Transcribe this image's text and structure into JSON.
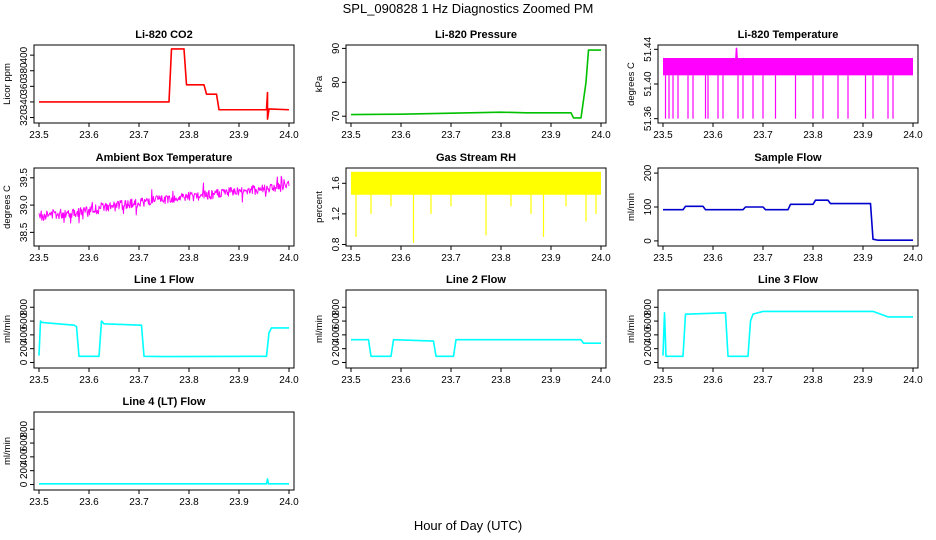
{
  "figure": {
    "title": "SPL_090828  1 Hz Diagnostics Zoomed PM",
    "xlabel": "Hour of Day (UTC)"
  },
  "chart_data": [
    {
      "id": "co2",
      "type": "line",
      "title": "Li-820 CO2",
      "ylabel": "Licor ppm",
      "color": "#ff0000",
      "xlim": [
        23.49,
        24.01
      ],
      "ylim": [
        313,
        413
      ],
      "yticks": [
        320,
        340,
        360,
        380,
        400
      ],
      "xticks": [
        23.5,
        23.6,
        23.7,
        23.8,
        23.9,
        24.0
      ],
      "x": [
        23.5,
        23.76,
        23.765,
        23.79,
        23.795,
        23.83,
        23.835,
        23.855,
        23.86,
        23.955,
        23.957,
        23.957,
        23.96,
        24.0
      ],
      "y": [
        340,
        340,
        408,
        408,
        362,
        362,
        350,
        350,
        330,
        330,
        352,
        318,
        331,
        330
      ]
    },
    {
      "id": "pressure",
      "type": "line",
      "title": "Li-820 Pressure",
      "ylabel": "kPa",
      "color": "#00c000",
      "xlim": [
        23.49,
        24.01
      ],
      "ylim": [
        68,
        91
      ],
      "yticks": [
        70,
        80,
        90
      ],
      "xticks": [
        23.5,
        23.6,
        23.7,
        23.8,
        23.9,
        24.0
      ],
      "x": [
        23.5,
        23.6,
        23.7,
        23.8,
        23.85,
        23.9,
        23.94,
        23.945,
        23.96,
        23.97,
        23.975,
        24.0
      ],
      "y": [
        70.5,
        70.6,
        70.9,
        71.2,
        71.0,
        71.0,
        71.0,
        69.5,
        69.5,
        80,
        89.5,
        89.5
      ]
    },
    {
      "id": "temperature",
      "type": "line",
      "title": "Li-820 Temperature",
      "ylabel": "degrees C",
      "color": "#ff00ff",
      "xlim": [
        23.49,
        24.01
      ],
      "ylim": [
        51.355,
        51.445
      ],
      "yticks": [
        51.36,
        51.4,
        51.44
      ],
      "ytick_labels": [
        "51.36",
        "51.40",
        "51.44"
      ],
      "xticks": [
        23.5,
        23.6,
        23.7,
        23.8,
        23.9,
        24.0
      ],
      "band": [
        51.41,
        51.43
      ],
      "x": [
        23.5,
        23.645,
        23.647,
        23.649,
        24.0
      ],
      "y": [
        51.42,
        51.42,
        51.441,
        51.42,
        51.42
      ],
      "dips": [
        23.505,
        23.512,
        23.52,
        23.53,
        23.55,
        23.56,
        23.585,
        23.59,
        23.61,
        23.62,
        23.65,
        23.66,
        23.68,
        23.7,
        23.725,
        23.765,
        23.8,
        23.82,
        23.85,
        23.87,
        23.905,
        23.92,
        23.95,
        23.96
      ],
      "dip_value": 51.36
    },
    {
      "id": "ambient",
      "type": "line",
      "title": "Ambient Box Temperature",
      "ylabel": "degrees C",
      "color": "#ff00ff",
      "xlim": [
        23.49,
        24.01
      ],
      "ylim": [
        38.25,
        39.68
      ],
      "yticks": [
        38.5,
        39.0,
        39.5
      ],
      "ytick_labels": [
        "38.5",
        "39.0",
        "39.5"
      ],
      "xticks": [
        23.5,
        23.6,
        23.7,
        23.8,
        23.9,
        24.0
      ],
      "x": [
        23.5,
        23.6,
        23.7,
        23.8,
        23.9,
        24.0
      ],
      "y": [
        38.8,
        38.9,
        39.05,
        39.15,
        39.25,
        39.35
      ],
      "noise": 0.09
    },
    {
      "id": "rh",
      "type": "line",
      "title": "Gas Stream RH",
      "ylabel": "percent",
      "color": "#ffff00",
      "xlim": [
        23.49,
        24.01
      ],
      "ylim": [
        0.78,
        1.8
      ],
      "yticks": [
        0.8,
        1.2,
        1.6
      ],
      "ytick_labels": [
        "0.8",
        "1.2",
        "1.6"
      ],
      "xticks": [
        23.5,
        23.6,
        23.7,
        23.8,
        23.9,
        24.0
      ],
      "band": [
        1.45,
        1.75
      ],
      "x": [
        23.5,
        24.0
      ],
      "y": [
        1.6,
        1.6
      ],
      "dips": [
        23.51,
        23.54,
        23.58,
        23.625,
        23.66,
        23.7,
        23.77,
        23.82,
        23.86,
        23.885,
        23.93,
        23.97,
        23.99
      ],
      "dip_values": [
        0.9,
        1.2,
        1.3,
        0.82,
        1.2,
        1.3,
        0.92,
        1.3,
        1.2,
        0.9,
        1.3,
        1.1,
        1.2
      ]
    },
    {
      "id": "sample",
      "type": "line",
      "title": "Sample Flow",
      "ylabel": "ml/min",
      "color": "#0000cc",
      "xlim": [
        23.49,
        24.01
      ],
      "ylim": [
        -15,
        215
      ],
      "yticks": [
        0,
        100,
        200
      ],
      "xticks": [
        23.5,
        23.6,
        23.7,
        23.8,
        23.9,
        24.0
      ],
      "x": [
        23.5,
        23.54,
        23.545,
        23.58,
        23.585,
        23.66,
        23.665,
        23.7,
        23.705,
        23.75,
        23.755,
        23.8,
        23.805,
        23.83,
        23.835,
        23.915,
        23.92,
        23.93,
        24.0
      ],
      "y": [
        92,
        92,
        102,
        102,
        92,
        92,
        100,
        100,
        92,
        92,
        108,
        108,
        120,
        120,
        110,
        110,
        5,
        2,
        2
      ]
    },
    {
      "id": "line1",
      "type": "line",
      "title": "Line 1 Flow",
      "ylabel": "ml/min",
      "color": "#00ffff",
      "xlim": [
        23.49,
        24.01
      ],
      "ylim": [
        -80,
        1050
      ],
      "yticks": [
        0,
        200,
        400,
        600,
        800
      ],
      "xticks": [
        23.5,
        23.6,
        23.7,
        23.8,
        23.9,
        24.0
      ],
      "x": [
        23.5,
        23.503,
        23.506,
        23.57,
        23.575,
        23.58,
        23.62,
        23.625,
        23.63,
        23.705,
        23.71,
        23.75,
        23.955,
        23.96,
        23.965,
        24.0
      ],
      "y": [
        100,
        600,
        580,
        540,
        520,
        90,
        90,
        600,
        560,
        540,
        90,
        85,
        90,
        430,
        500,
        500
      ]
    },
    {
      "id": "line2",
      "type": "line",
      "title": "Line 2 Flow",
      "ylabel": "ml/min",
      "color": "#00ffff",
      "xlim": [
        23.49,
        24.01
      ],
      "ylim": [
        -80,
        1050
      ],
      "yticks": [
        0,
        200,
        400,
        600,
        800
      ],
      "xticks": [
        23.5,
        23.6,
        23.7,
        23.8,
        23.9,
        24.0
      ],
      "x": [
        23.5,
        23.535,
        23.54,
        23.58,
        23.585,
        23.665,
        23.67,
        23.705,
        23.71,
        23.96,
        23.965,
        24.0
      ],
      "y": [
        330,
        330,
        90,
        90,
        330,
        310,
        90,
        90,
        330,
        330,
        280,
        280
      ]
    },
    {
      "id": "line3",
      "type": "line",
      "title": "Line 3 Flow",
      "ylabel": "ml/min",
      "color": "#00ffff",
      "xlim": [
        23.49,
        24.01
      ],
      "ylim": [
        -80,
        1050
      ],
      "yticks": [
        0,
        200,
        400,
        600,
        800
      ],
      "xticks": [
        23.5,
        23.6,
        23.7,
        23.8,
        23.9,
        24.0
      ],
      "x": [
        23.5,
        23.503,
        23.506,
        23.54,
        23.545,
        23.625,
        23.63,
        23.67,
        23.675,
        23.68,
        23.7,
        23.8,
        23.92,
        23.95,
        24.0
      ],
      "y": [
        100,
        720,
        90,
        90,
        700,
        720,
        90,
        90,
        600,
        700,
        740,
        740,
        740,
        660,
        660
      ]
    },
    {
      "id": "line4",
      "type": "line",
      "title": "Line 4 (LT) Flow",
      "ylabel": "ml/min",
      "color": "#00ffff",
      "xlim": [
        23.49,
        24.01
      ],
      "ylim": [
        -80,
        1050
      ],
      "yticks": [
        0,
        200,
        400,
        600,
        800
      ],
      "xticks": [
        23.5,
        23.6,
        23.7,
        23.8,
        23.9,
        24.0
      ],
      "x": [
        23.5,
        23.955,
        23.957,
        23.959,
        24.0
      ],
      "y": [
        10,
        10,
        80,
        10,
        10
      ]
    }
  ]
}
